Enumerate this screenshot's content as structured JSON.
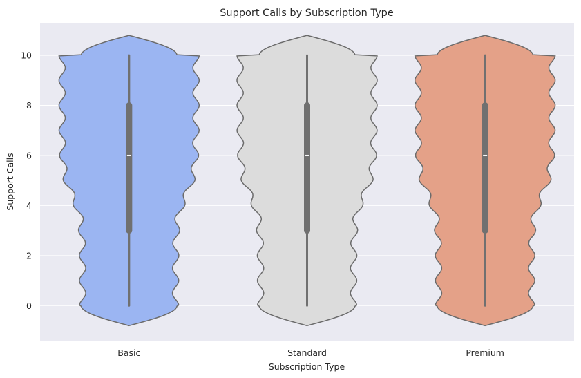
{
  "chart_data": {
    "type": "violin",
    "title": "Support Calls by Subscription Type",
    "xlabel": "Subscription Type",
    "ylabel": "Support Calls",
    "categories": [
      "Basic",
      "Standard",
      "Premium"
    ],
    "colors": [
      "#9bb5f2",
      "#dcdcdc",
      "#e4a188"
    ],
    "ylim": [
      -1.4,
      11.3
    ],
    "yticks": [
      0,
      2,
      4,
      6,
      8,
      10
    ],
    "grid": true,
    "series": [
      {
        "category": "Basic",
        "min": 0,
        "q1": 3,
        "median": 6,
        "q3": 8,
        "max": 10
      },
      {
        "category": "Standard",
        "min": 0,
        "q1": 3,
        "median": 6,
        "q3": 8,
        "max": 10
      },
      {
        "category": "Premium",
        "min": 0,
        "q1": 3,
        "median": 6,
        "q3": 8,
        "max": 10
      }
    ]
  }
}
